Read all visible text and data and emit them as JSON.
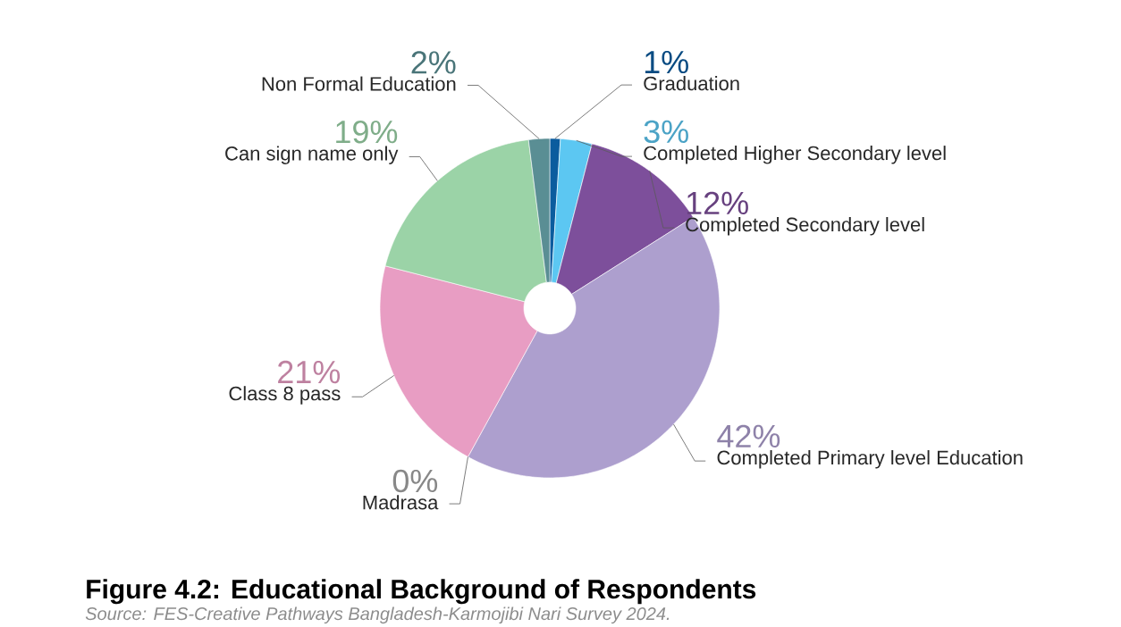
{
  "chart_data": {
    "type": "donut",
    "title": "Figure 4.2: Educational Background of Respondents",
    "categories": [
      "Graduation",
      "Completed Higher Secondary level",
      "Completed Secondary level",
      "Completed Primary level Education",
      "Madrasa",
      "Class 8 pass",
      "Can sign name only",
      "Non Formal Education"
    ],
    "values": [
      1,
      3,
      12,
      42,
      0,
      21,
      19,
      2
    ],
    "value_labels": [
      "1%",
      "3%",
      "12%",
      "42%",
      "0%",
      "21%",
      "19%",
      "2%"
    ],
    "colors": [
      "#0b5c9e",
      "#5cc7f2",
      "#7d4f9b",
      "#ad9fce",
      "#a6a6a6",
      "#e89dc3",
      "#9bd3a7",
      "#5a8e94"
    ],
    "annotations": [
      "Source: FES-Creative Pathways Bangladesh-Karmojibi Nari Survey 2024."
    ]
  }
}
